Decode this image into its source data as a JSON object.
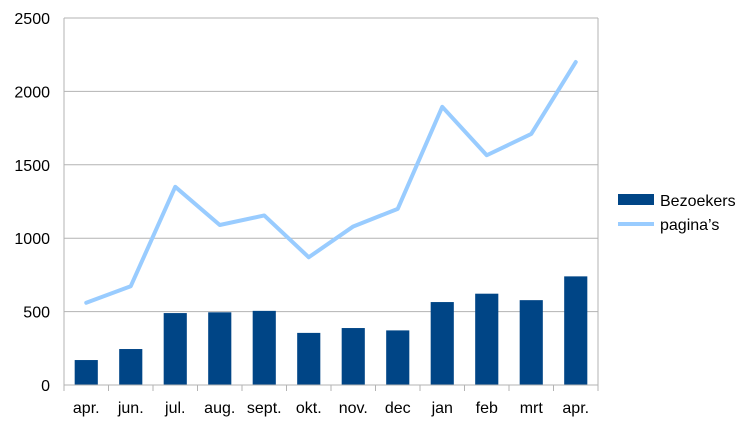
{
  "chart_data": {
    "type": "bar",
    "categories": [
      "apr.",
      "jun.",
      "jul.",
      "aug.",
      "sept.",
      "okt.",
      "nov.",
      "dec",
      "jan",
      "feb",
      "mrt",
      "apr."
    ],
    "series": [
      {
        "name": "Bezoekers",
        "type": "bar",
        "color": "#004586",
        "values": [
          170,
          245,
          490,
          495,
          505,
          355,
          388,
          372,
          565,
          622,
          578,
          740
        ]
      },
      {
        "name": "pagina’s",
        "type": "line",
        "color": "#99ccff",
        "values": [
          560,
          673,
          1350,
          1090,
          1155,
          870,
          1080,
          1200,
          1895,
          1565,
          1710,
          2200
        ]
      }
    ],
    "y_ticks": [
      "0",
      "500",
      "1000",
      "1500",
      "2000",
      "2500"
    ],
    "ylim": [
      0,
      2500
    ],
    "grid": true,
    "legend_position": "right"
  }
}
